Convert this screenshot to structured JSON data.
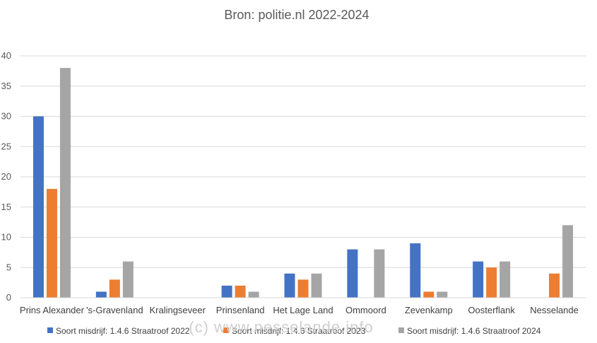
{
  "chart_data": {
    "type": "bar",
    "title": "Bron: politie.nl 2022-2024",
    "xlabel": "",
    "ylabel": "",
    "ylim": [
      0,
      40
    ],
    "yticks": [
      0,
      5,
      10,
      15,
      20,
      25,
      30,
      35,
      40
    ],
    "grid": true,
    "legend_position": "bottom",
    "categories": [
      "Prins Alexander",
      "'s-Gravenland",
      "Kralingseveer",
      "Prinsenland",
      "Het Lage Land",
      "Ommoord",
      "Zevenkamp",
      "Oosterflank",
      "Nesselande"
    ],
    "series": [
      {
        "name": "Soort misdrijf: 1.4.6 Straatroof 2022",
        "color": "#4472C4",
        "values": [
          30,
          1,
          0,
          2,
          4,
          8,
          9,
          6,
          0
        ]
      },
      {
        "name": "Soort misdrijf: 1.4.6 Straatroof 2023",
        "color": "#ED7D31",
        "values": [
          18,
          3,
          0,
          2,
          3,
          0,
          1,
          5,
          4
        ]
      },
      {
        "name": "Soort misdrijf: 1.4.6 Straatroof 2024",
        "color": "#A5A5A5",
        "values": [
          38,
          6,
          0,
          1,
          4,
          8,
          1,
          6,
          12
        ]
      }
    ],
    "watermark": "(c) www.nesselande.info"
  }
}
